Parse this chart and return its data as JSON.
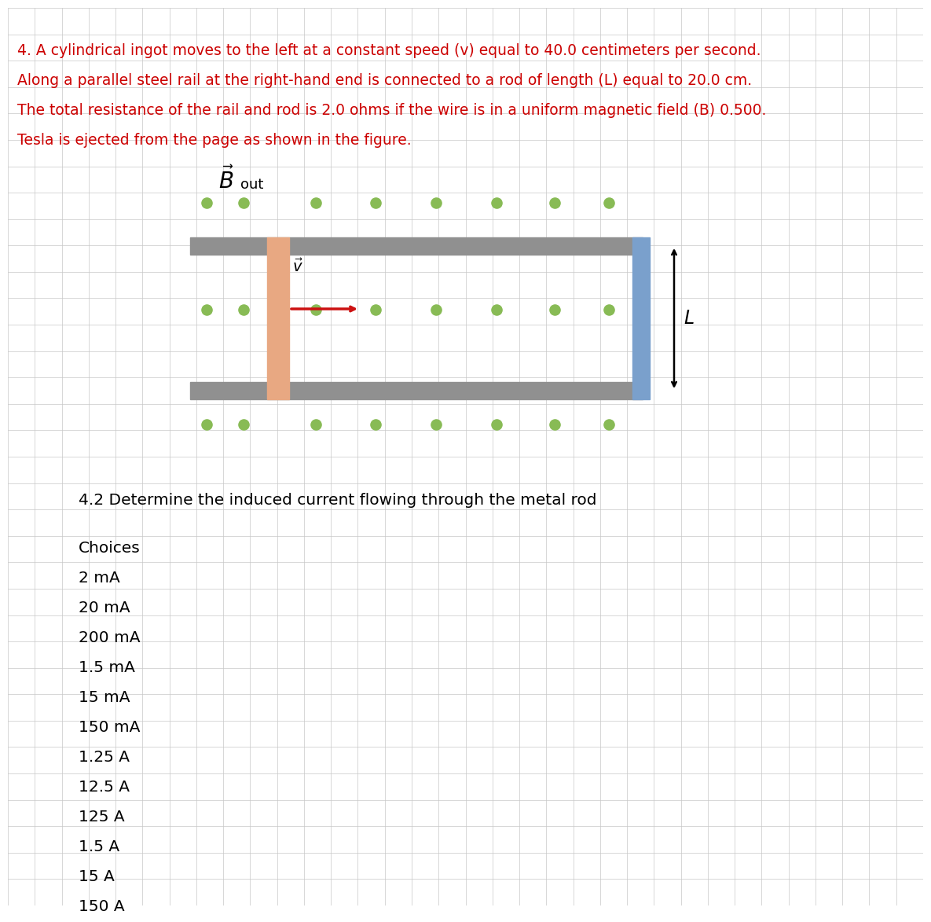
{
  "background_color": "#ffffff",
  "grid_color": "#c8c8c8",
  "description_lines": [
    "4. A cylindrical ingot moves to the left at a constant speed (v) equal to 40.0 centimeters per second.",
    "Along a parallel steel rail at the right-hand end is connected to a rod of length (L) equal to 20.0 cm.",
    "The total resistance of the rail and rod is 2.0 ohms if the wire is in a uniform magnetic field (B) 0.500.",
    "Tesla is ejected from the page as shown in the figure."
  ],
  "description_color": "#cc0000",
  "description_fontsize": 13.5,
  "question_text": "4.2 Determine the induced current flowing through the metal rod",
  "question_fontsize": 14.5,
  "choices_label": "Choices",
  "choices": [
    "2 mA",
    "20 mA",
    "200 mA",
    "1.5 mA",
    "15 mA",
    "150 mA",
    "1.25 A",
    "12.5 A",
    "125 A",
    "1.5 A",
    "15 A",
    "150 A"
  ],
  "choices_fontsize": 14.5,
  "rail_color": "#909090",
  "ingot_color": "#e8a882",
  "rod_color": "#7aa0cc",
  "dot_color": "#88bb55",
  "arrow_color": "#cc1111"
}
